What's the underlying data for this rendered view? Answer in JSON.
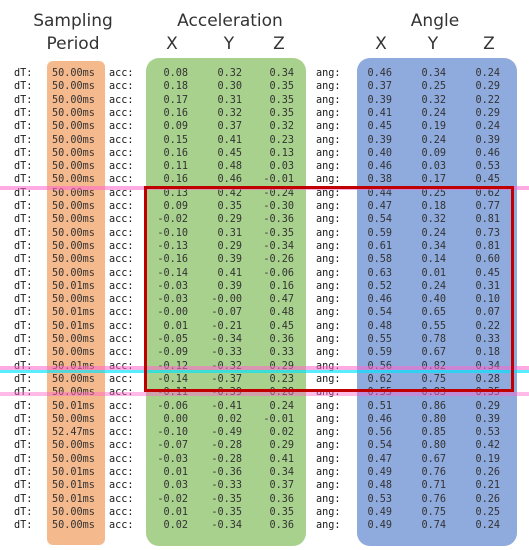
{
  "headers": {
    "sampling": "Sampling",
    "period": "Period",
    "acceleration": "Acceleration",
    "angle": "Angle",
    "axes_acc": [
      "X",
      "Y",
      "Z"
    ],
    "axes_ang": [
      "X",
      "Y",
      "Z"
    ]
  },
  "labels": {
    "dt": "dT:",
    "acc": "acc:",
    "ang": "ang:"
  },
  "colors": {
    "period_bg": "#f5b98e",
    "acc_bg": "#a9d18e",
    "ang_bg": "#8faadc",
    "box_border": "#c00000",
    "highlight_pink": "#ff66cc",
    "highlight_cyan": "#00e5ff"
  },
  "rows": [
    {
      "dt": "50.00ms",
      "acc": [
        "0.08",
        "0.32",
        "0.34"
      ],
      "ang": [
        "0.46",
        "0.34",
        "0.24"
      ]
    },
    {
      "dt": "50.00ms",
      "acc": [
        "0.18",
        "0.30",
        "0.35"
      ],
      "ang": [
        "0.37",
        "0.25",
        "0.29"
      ]
    },
    {
      "dt": "50.00ms",
      "acc": [
        "0.17",
        "0.31",
        "0.35"
      ],
      "ang": [
        "0.39",
        "0.32",
        "0.22"
      ]
    },
    {
      "dt": "50.00ms",
      "acc": [
        "0.16",
        "0.32",
        "0.35"
      ],
      "ang": [
        "0.41",
        "0.24",
        "0.29"
      ]
    },
    {
      "dt": "50.00ms",
      "acc": [
        "0.09",
        "0.37",
        "0.32"
      ],
      "ang": [
        "0.45",
        "0.19",
        "0.24"
      ]
    },
    {
      "dt": "50.00ms",
      "acc": [
        "0.15",
        "0.41",
        "0.23"
      ],
      "ang": [
        "0.39",
        "0.24",
        "0.39"
      ]
    },
    {
      "dt": "50.00ms",
      "acc": [
        "0.16",
        "0.45",
        "0.13"
      ],
      "ang": [
        "0.40",
        "0.09",
        "0.46"
      ]
    },
    {
      "dt": "50.00ms",
      "acc": [
        "0.11",
        "0.48",
        "0.03"
      ],
      "ang": [
        "0.46",
        "0.03",
        "0.53"
      ]
    },
    {
      "dt": "50.00ms",
      "acc": [
        "0.16",
        "0.46",
        "-0.01"
      ],
      "ang": [
        "0.38",
        "0.17",
        "0.45"
      ]
    },
    {
      "dt": "50.00ms",
      "acc": [
        "0.13",
        "0.42",
        "-0.24"
      ],
      "ang": [
        "0.44",
        "0.25",
        "0.62"
      ]
    },
    {
      "dt": "50.00ms",
      "acc": [
        "0.09",
        "0.35",
        "-0.30"
      ],
      "ang": [
        "0.47",
        "0.18",
        "0.77"
      ]
    },
    {
      "dt": "50.00ms",
      "acc": [
        "-0.02",
        "0.29",
        "-0.36"
      ],
      "ang": [
        "0.54",
        "0.32",
        "0.81"
      ]
    },
    {
      "dt": "50.00ms",
      "acc": [
        "-0.10",
        "0.31",
        "-0.35"
      ],
      "ang": [
        "0.59",
        "0.24",
        "0.73"
      ]
    },
    {
      "dt": "50.00ms",
      "acc": [
        "-0.13",
        "0.29",
        "-0.34"
      ],
      "ang": [
        "0.61",
        "0.34",
        "0.81"
      ]
    },
    {
      "dt": "50.00ms",
      "acc": [
        "-0.16",
        "0.39",
        "-0.26"
      ],
      "ang": [
        "0.58",
        "0.14",
        "0.60"
      ]
    },
    {
      "dt": "50.00ms",
      "acc": [
        "-0.14",
        "0.41",
        "-0.06"
      ],
      "ang": [
        "0.63",
        "0.01",
        "0.45"
      ]
    },
    {
      "dt": "50.01ms",
      "acc": [
        "-0.03",
        "0.39",
        "0.16"
      ],
      "ang": [
        "0.52",
        "0.24",
        "0.31"
      ]
    },
    {
      "dt": "50.00ms",
      "acc": [
        "-0.03",
        "-0.00",
        "0.47"
      ],
      "ang": [
        "0.46",
        "0.40",
        "0.10"
      ]
    },
    {
      "dt": "50.01ms",
      "acc": [
        "-0.00",
        "-0.07",
        "0.48"
      ],
      "ang": [
        "0.54",
        "0.65",
        "0.07"
      ]
    },
    {
      "dt": "50.01ms",
      "acc": [
        "0.01",
        "-0.21",
        "0.45"
      ],
      "ang": [
        "0.48",
        "0.55",
        "0.22"
      ]
    },
    {
      "dt": "50.00ms",
      "acc": [
        "-0.05",
        "-0.34",
        "0.36"
      ],
      "ang": [
        "0.55",
        "0.78",
        "0.33"
      ]
    },
    {
      "dt": "50.00ms",
      "acc": [
        "-0.09",
        "-0.33",
        "0.33"
      ],
      "ang": [
        "0.59",
        "0.67",
        "0.18"
      ]
    },
    {
      "dt": "50.01ms",
      "acc": [
        "-0.12",
        "-0.32",
        "0.29"
      ],
      "ang": [
        "0.56",
        "0.82",
        "0.34"
      ]
    },
    {
      "dt": "50.00ms",
      "acc": [
        "-0.14",
        "-0.37",
        "0.23"
      ],
      "ang": [
        "0.62",
        "0.75",
        "0.28"
      ]
    },
    {
      "dt": "50.00ms",
      "acc": [
        "-0.11",
        "-0.39",
        "0.28"
      ],
      "ang": [
        "0.55",
        "0.83",
        "0.35"
      ]
    },
    {
      "dt": "50.01ms",
      "acc": [
        "-0.06",
        "-0.41",
        "0.24"
      ],
      "ang": [
        "0.51",
        "0.86",
        "0.29"
      ]
    },
    {
      "dt": "50.00ms",
      "acc": [
        "0.00",
        "0.02",
        "-0.01"
      ],
      "ang": [
        "0.46",
        "0.80",
        "0.39"
      ]
    },
    {
      "dt": "52.47ms",
      "acc": [
        "-0.10",
        "-0.49",
        "0.02"
      ],
      "ang": [
        "0.56",
        "0.85",
        "0.53"
      ]
    },
    {
      "dt": "50.00ms",
      "acc": [
        "-0.07",
        "-0.28",
        "0.29"
      ],
      "ang": [
        "0.54",
        "0.80",
        "0.42"
      ]
    },
    {
      "dt": "50.00ms",
      "acc": [
        "-0.03",
        "-0.28",
        "0.41"
      ],
      "ang": [
        "0.47",
        "0.67",
        "0.19"
      ]
    },
    {
      "dt": "50.01ms",
      "acc": [
        "0.01",
        "-0.36",
        "0.34"
      ],
      "ang": [
        "0.49",
        "0.76",
        "0.26"
      ]
    },
    {
      "dt": "50.01ms",
      "acc": [
        "0.03",
        "-0.33",
        "0.37"
      ],
      "ang": [
        "0.48",
        "0.71",
        "0.21"
      ]
    },
    {
      "dt": "50.01ms",
      "acc": [
        "-0.02",
        "-0.35",
        "0.36"
      ],
      "ang": [
        "0.53",
        "0.76",
        "0.26"
      ]
    },
    {
      "dt": "50.00ms",
      "acc": [
        "0.01",
        "-0.35",
        "0.35"
      ],
      "ang": [
        "0.49",
        "0.75",
        "0.25"
      ]
    },
    {
      "dt": "50.00ms",
      "acc": [
        "0.02",
        "-0.34",
        "0.36"
      ],
      "ang": [
        "0.49",
        "0.74",
        "0.24"
      ]
    }
  ]
}
